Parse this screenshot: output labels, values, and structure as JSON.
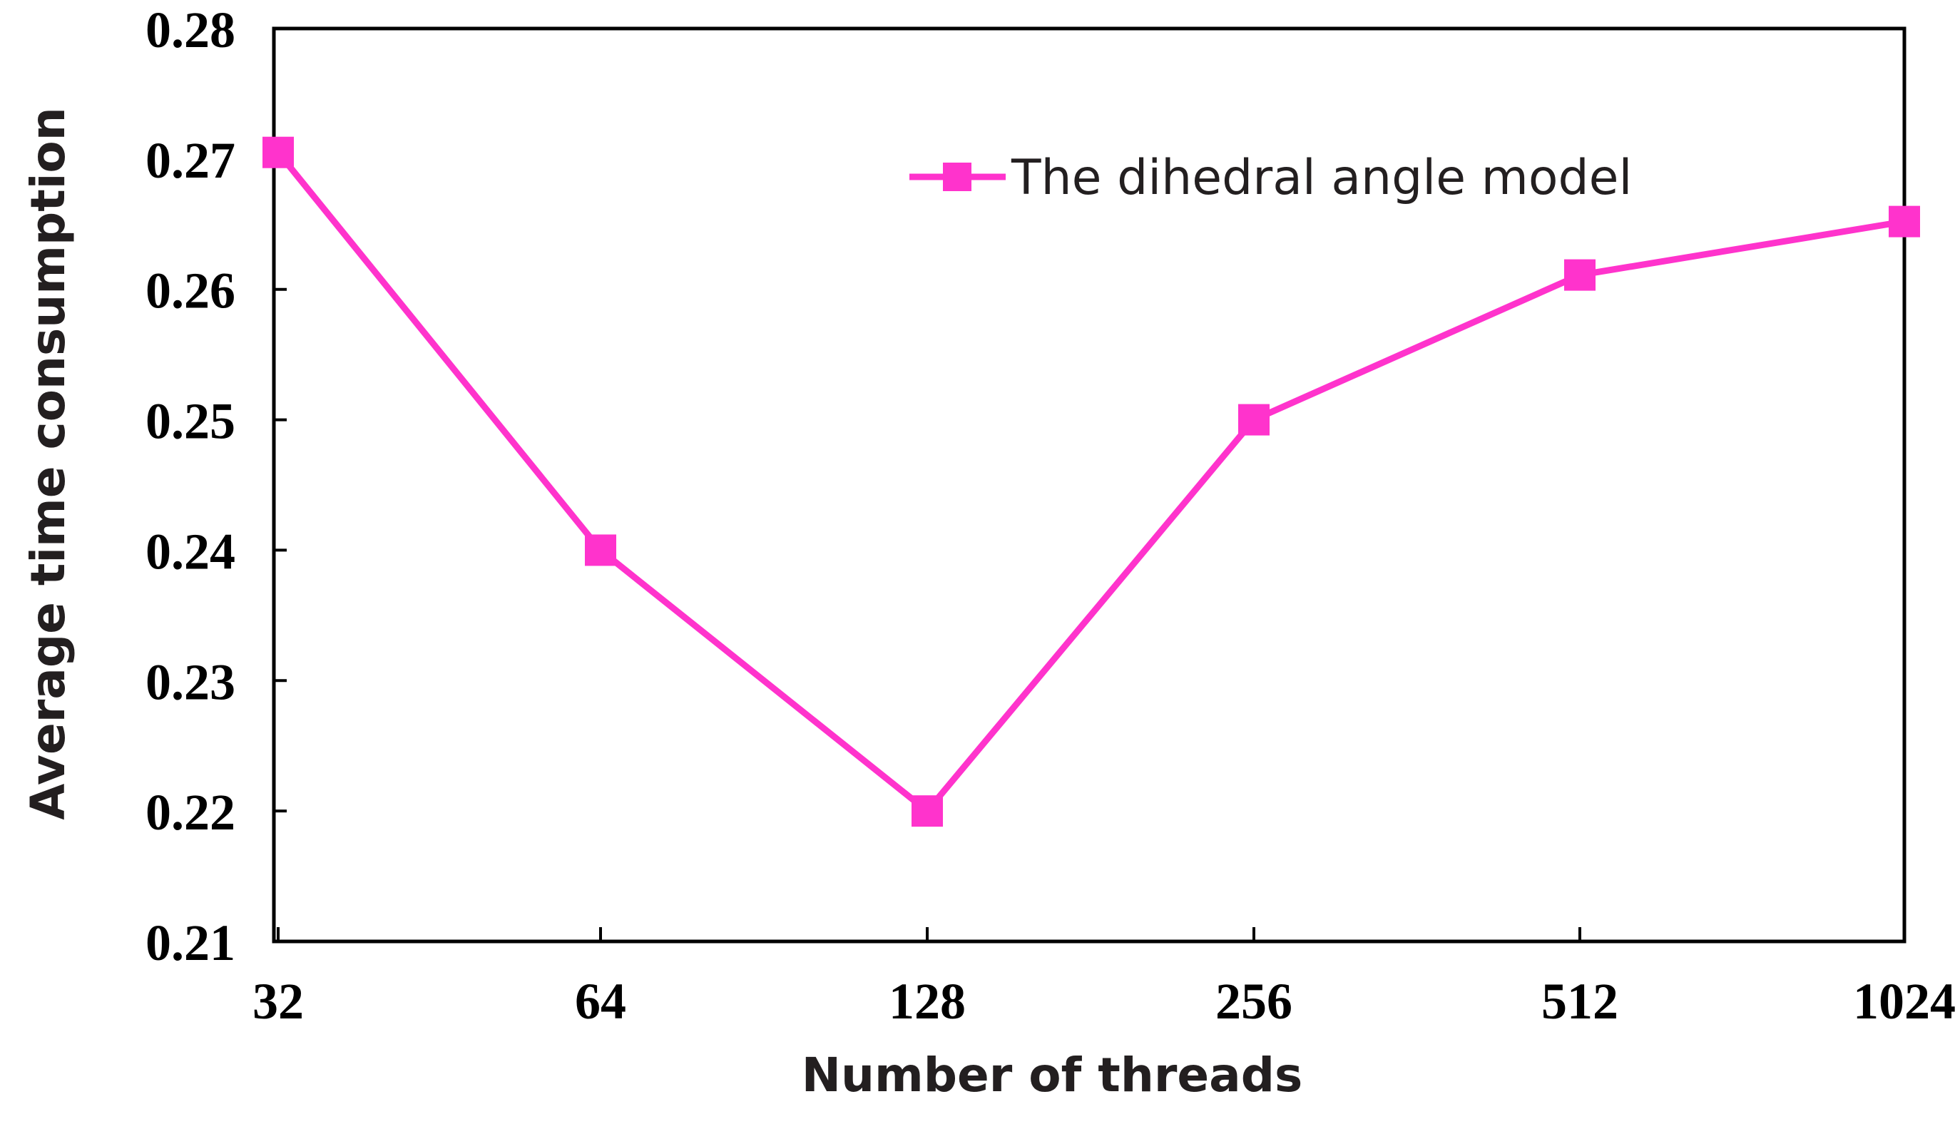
{
  "chart_data": {
    "type": "line",
    "title": "",
    "xlabel": "Number of threads",
    "ylabel": "Average time consumption",
    "categories": [
      "32",
      "64",
      "128",
      "256",
      "512",
      "1024"
    ],
    "series": [
      {
        "name": "The dihedral angle model",
        "values": [
          0.2705,
          0.24,
          0.22,
          0.25,
          0.2611,
          0.2652
        ],
        "color": "#ff33cc",
        "marker": "square"
      }
    ],
    "ylim": [
      0.21,
      0.28
    ],
    "yticks": [
      "0.21",
      "0.22",
      "0.23",
      "0.24",
      "0.25",
      "0.26",
      "0.27",
      "0.28"
    ],
    "grid": false,
    "legend": "top-right"
  }
}
